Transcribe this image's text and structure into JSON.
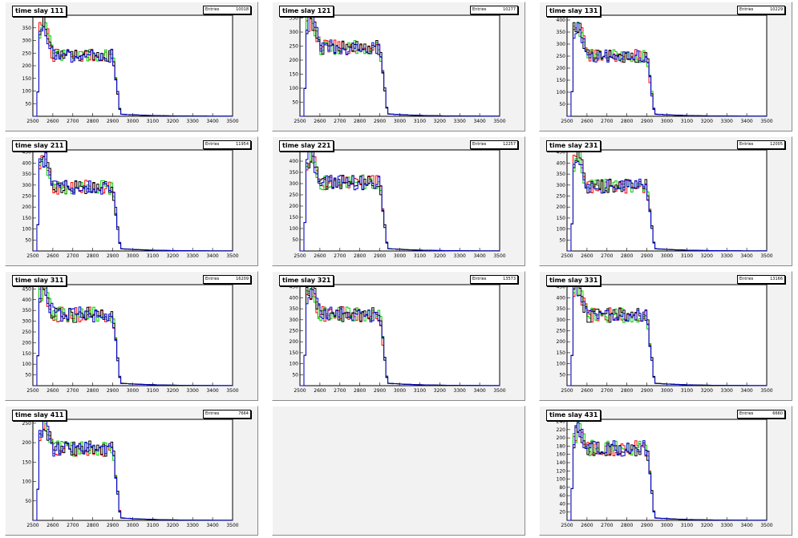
{
  "figure": {
    "x_ticks": [
      "2500",
      "2600",
      "2700",
      "2800",
      "2900",
      "3000",
      "3100",
      "3200",
      "3300",
      "3400",
      "3500"
    ],
    "stats_label": "Entries",
    "colors": {
      "pad": "#f2f2f2",
      "frame": "#ffffff",
      "series1": "#ff0000",
      "series2": "#00cc00",
      "series3": "#000000",
      "series4": "#0000cc"
    }
  },
  "chart_data": [
    {
      "type": "histogram",
      "title": "time slay 111",
      "entries": "10018",
      "ylim": [
        0,
        400
      ],
      "yticks": [
        "50",
        "100",
        "150",
        "200",
        "250",
        "300",
        "350"
      ],
      "xlim": [
        2500,
        3500
      ],
      "plateau": 240,
      "peak": 370,
      "bins": 100,
      "series_colors": [
        "#ff0000",
        "#00cc00",
        "#000000",
        "#0000cc"
      ]
    },
    {
      "type": "histogram",
      "title": "time slay 121",
      "entries": "10277",
      "ylim": [
        0,
        360
      ],
      "yticks": [
        "50",
        "100",
        "150",
        "200",
        "250",
        "300",
        "350"
      ],
      "xlim": [
        2500,
        3500
      ],
      "plateau": 245,
      "peak": 355,
      "bins": 100,
      "series_colors": [
        "#ff0000",
        "#00cc00",
        "#000000",
        "#0000cc"
      ]
    },
    {
      "type": "histogram",
      "title": "time slay 131",
      "entries": "10229",
      "ylim": [
        0,
        420
      ],
      "yticks": [
        "50",
        "100",
        "150",
        "200",
        "250",
        "300",
        "350",
        "400"
      ],
      "xlim": [
        2500,
        3500
      ],
      "plateau": 250,
      "peak": 390,
      "bins": 100,
      "series_colors": [
        "#ff0000",
        "#00cc00",
        "#000000",
        "#0000cc"
      ]
    },
    {
      "type": "histogram",
      "title": "time slay 211",
      "entries": "11954",
      "ylim": [
        0,
        460
      ],
      "yticks": [
        "50",
        "100",
        "150",
        "200",
        "250",
        "300",
        "350",
        "400",
        "450"
      ],
      "xlim": [
        2500,
        3500
      ],
      "plateau": 290,
      "peak": 420,
      "bins": 100,
      "series_colors": [
        "#ff0000",
        "#00cc00",
        "#000000",
        "#0000cc"
      ]
    },
    {
      "type": "histogram",
      "title": "time slay 221",
      "entries": "12257",
      "ylim": [
        0,
        450
      ],
      "yticks": [
        "50",
        "100",
        "150",
        "200",
        "250",
        "300",
        "350",
        "400"
      ],
      "xlim": [
        2500,
        3500
      ],
      "plateau": 305,
      "peak": 425,
      "bins": 100,
      "series_colors": [
        "#ff0000",
        "#00cc00",
        "#000000",
        "#0000cc"
      ]
    },
    {
      "type": "histogram",
      "title": "time slay 231",
      "entries": "12005",
      "ylim": [
        0,
        460
      ],
      "yticks": [
        "50",
        "100",
        "150",
        "200",
        "250",
        "300",
        "350",
        "400",
        "450"
      ],
      "xlim": [
        2500,
        3500
      ],
      "plateau": 295,
      "peak": 430,
      "bins": 100,
      "series_colors": [
        "#ff0000",
        "#00cc00",
        "#000000",
        "#0000cc"
      ]
    },
    {
      "type": "histogram",
      "title": "time slay 311",
      "entries": "16209",
      "ylim": [
        0,
        470
      ],
      "yticks": [
        "50",
        "100",
        "150",
        "200",
        "250",
        "300",
        "350",
        "400",
        "450"
      ],
      "xlim": [
        2500,
        3500
      ],
      "plateau": 330,
      "peak": 460,
      "bins": 100,
      "series_colors": [
        "#ff0000",
        "#00cc00",
        "#000000",
        "#0000cc"
      ]
    },
    {
      "type": "histogram",
      "title": "time slay 321",
      "entries": "13573",
      "ylim": [
        0,
        460
      ],
      "yticks": [
        "50",
        "100",
        "150",
        "200",
        "250",
        "300",
        "350",
        "400",
        "450"
      ],
      "xlim": [
        2500,
        3500
      ],
      "plateau": 325,
      "peak": 445,
      "bins": 100,
      "series_colors": [
        "#ff0000",
        "#00cc00",
        "#000000",
        "#0000cc"
      ]
    },
    {
      "type": "histogram",
      "title": "time slay 331",
      "entries": "13166",
      "ylim": [
        0,
        460
      ],
      "yticks": [
        "50",
        "100",
        "150",
        "200",
        "250",
        "300",
        "350",
        "400",
        "450"
      ],
      "xlim": [
        2500,
        3500
      ],
      "plateau": 320,
      "peak": 455,
      "bins": 100,
      "series_colors": [
        "#ff0000",
        "#00cc00",
        "#000000",
        "#0000cc"
      ]
    },
    {
      "type": "histogram",
      "title": "time slay 411",
      "entries": "7664",
      "ylim": [
        0,
        260
      ],
      "yticks": [
        "50",
        "100",
        "150",
        "200",
        "250"
      ],
      "xlim": [
        2500,
        3500
      ],
      "plateau": 185,
      "peak": 255,
      "bins": 100,
      "series_colors": [
        "#ff0000",
        "#00cc00",
        "#000000",
        "#0000cc"
      ]
    },
    {
      "type": "empty"
    },
    {
      "type": "histogram",
      "title": "time slay 431",
      "entries": "6660",
      "ylim": [
        0,
        245
      ],
      "yticks": [
        "20",
        "40",
        "60",
        "80",
        "100",
        "120",
        "140",
        "160",
        "180",
        "200",
        "220",
        "240"
      ],
      "xlim": [
        2500,
        3500
      ],
      "plateau": 175,
      "peak": 225,
      "bins": 100,
      "series_colors": [
        "#ff0000",
        "#00cc00",
        "#000000",
        "#0000cc"
      ]
    }
  ]
}
